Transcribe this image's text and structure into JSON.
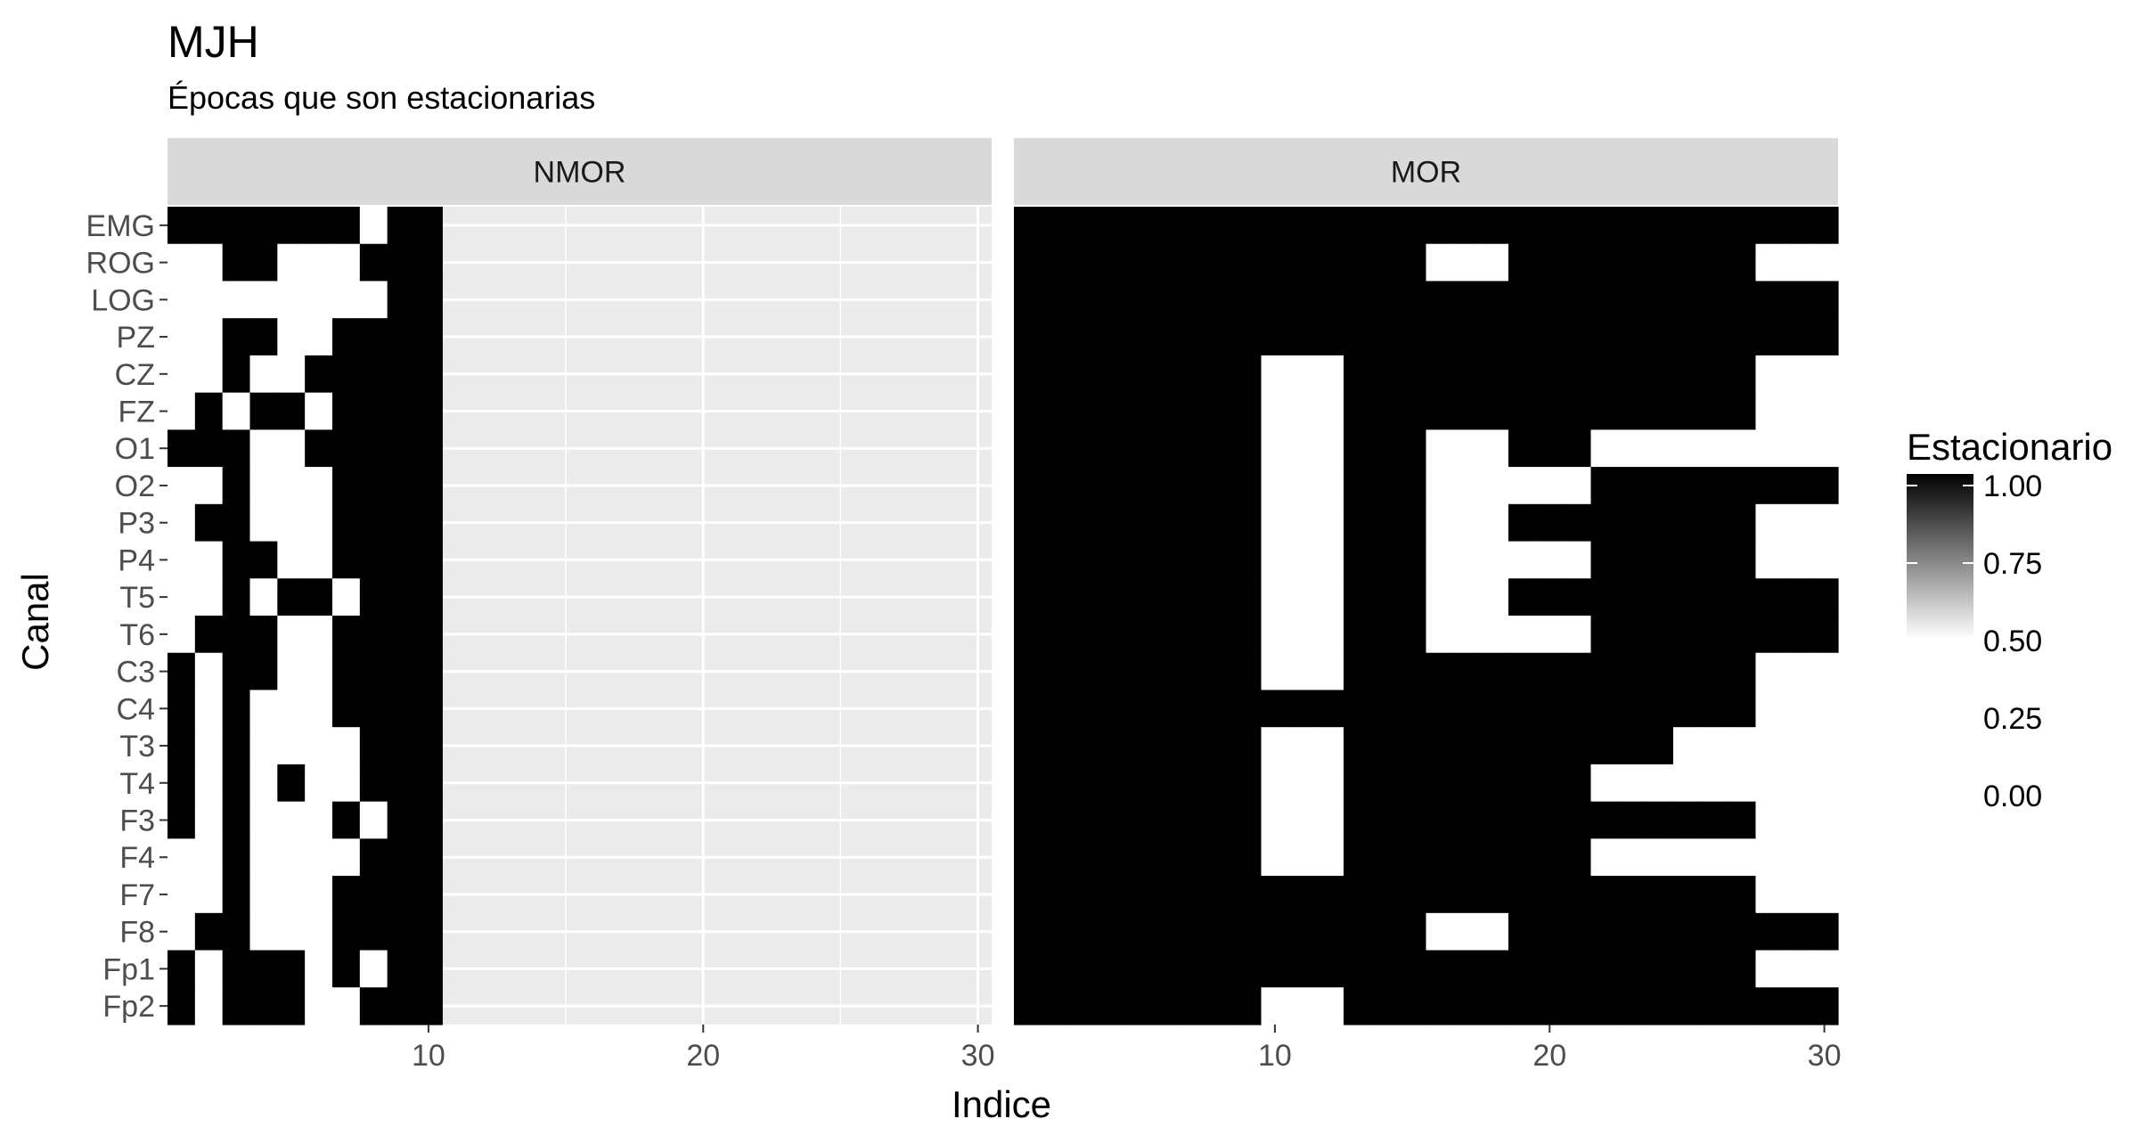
{
  "chart_data": {
    "type": "heatmap",
    "title": "MJH",
    "subtitle": "Épocas que son estacionarias",
    "xlabel": "Indice",
    "ylabel": "Canal",
    "x_ticks": [
      10,
      20,
      30
    ],
    "xlim": [
      0.5,
      30.5
    ],
    "channels": [
      "EMG",
      "ROG",
      "LOG",
      "PZ",
      "CZ",
      "FZ",
      "O1",
      "O2",
      "P3",
      "P4",
      "T5",
      "T6",
      "C3",
      "C4",
      "T3",
      "T4",
      "F3",
      "F4",
      "F7",
      "F8",
      "Fp1",
      "Fp2"
    ],
    "legend": {
      "title": "Estacionario",
      "labels": [
        "1.00",
        "0.75",
        "0.50",
        "0.25",
        "0.00"
      ],
      "low_color": "#ffffff",
      "high_color": "#000000"
    },
    "panel_background": "#ebebeb",
    "strip_background": "#d9d9d9",
    "panels": [
      {
        "name": "NMOR",
        "n_epochs": 10,
        "rows": [
          "1111111011",
          "0011000111",
          "0000000011",
          "0011001111",
          "0010011111",
          "0101101111",
          "1110011111",
          "0010001111",
          "0110001111",
          "0011001111",
          "0010110111",
          "0111001111",
          "1011001111",
          "1010001111",
          "1010000111",
          "1010100111",
          "1010001011",
          "0010000111",
          "0010001111",
          "0110001111",
          "1011101011",
          "1011100111"
        ]
      },
      {
        "name": "MOR",
        "n_epochs": 30,
        "rows": [
          "111111111111111111111111111111",
          "111111111111111000111111111000",
          "111111111111111111111111111111",
          "111111111111111111111111111111",
          "111111111000111111111111111000",
          "111111111000111111111111111000",
          "111111111000111000111000000000",
          "111111111000111000000111111111",
          "111111111000111000111111111000",
          "111111111000111000000111111000",
          "111111111000111000111111111111",
          "111111111000111000000111111111",
          "111111111000111111111111111000",
          "111111111111111111111111111000",
          "111111111000111111111111000000",
          "111111111000111111111000000000",
          "111111111000111111111111111000",
          "111111111000111111111000000000",
          "111111111111111111111111111000",
          "111111111111111000111111111111",
          "111111111111111111111111111000",
          "111111111000111111111111111111"
        ]
      }
    ]
  }
}
